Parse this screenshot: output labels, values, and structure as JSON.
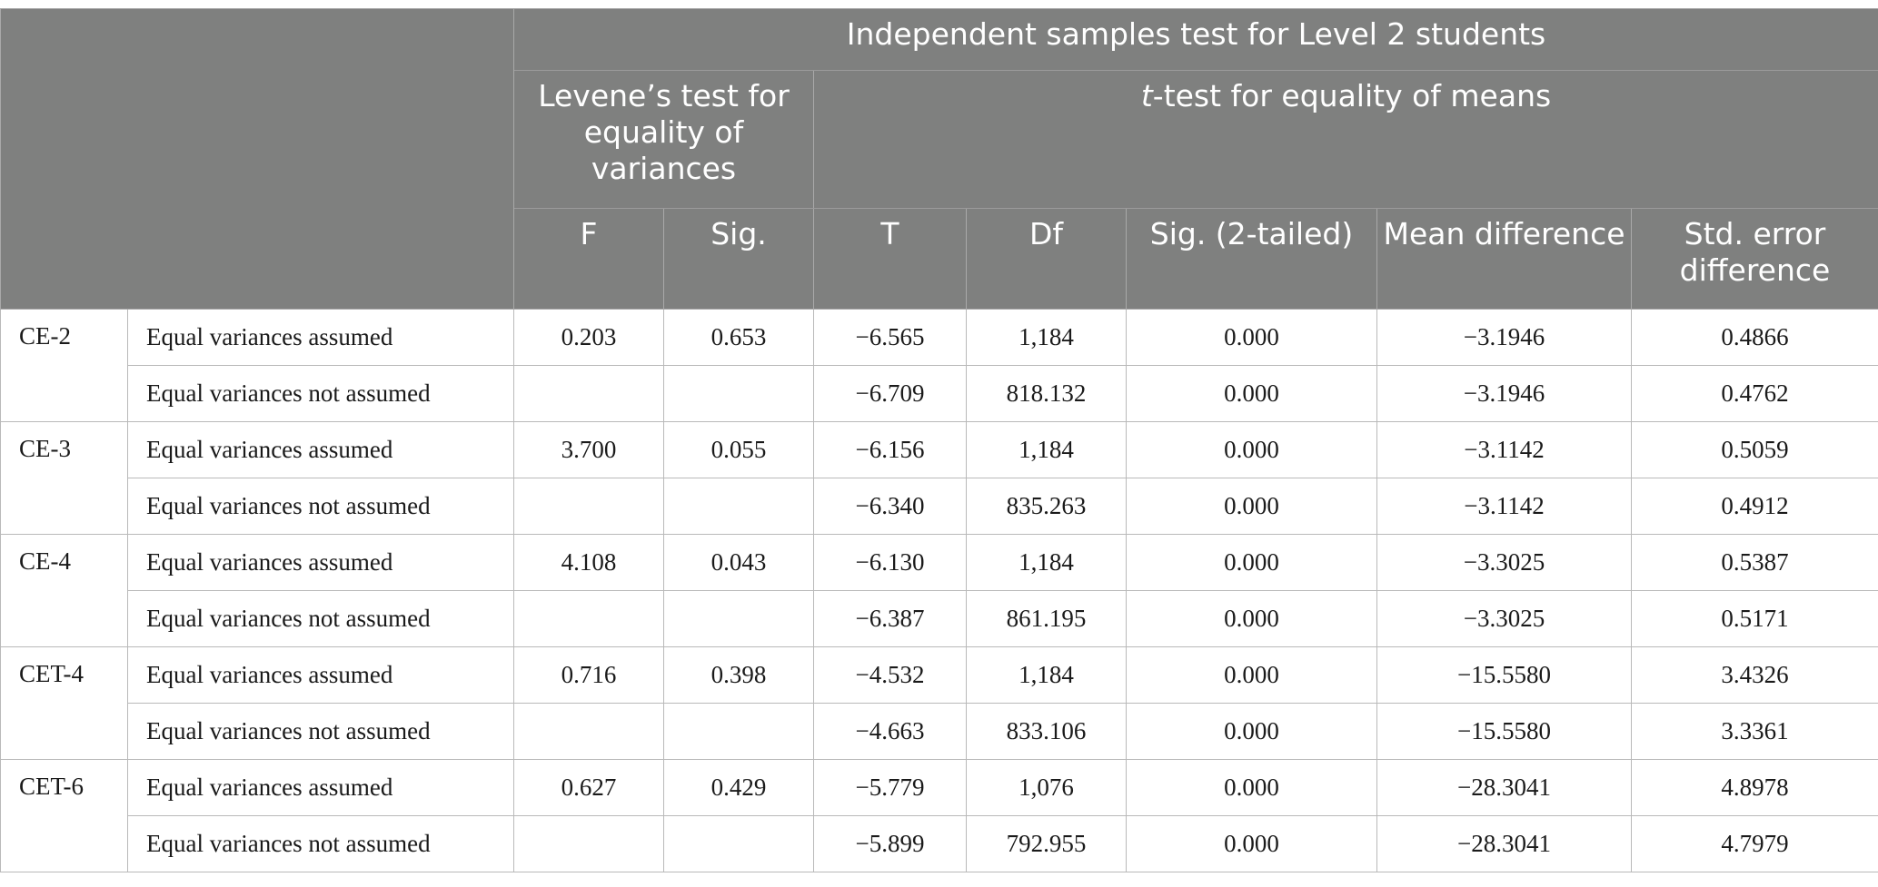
{
  "title": "Independent samples test for Level 2 students",
  "levene_header": "Levene’s test for equality of variances",
  "ttest_header_italic": "t",
  "ttest_header_rest": "-test for equality of means",
  "columns": [
    "F",
    "Sig.",
    "T",
    "Df",
    "Sig. (2-tailed)",
    "Mean difference",
    "Std. error difference"
  ],
  "rows": [
    {
      "test": "CE-2",
      "assumed": {
        "label": "Equal variances assumed",
        "f": "0.203",
        "sig": "0.653",
        "t": "−6.565",
        "df": "1,184",
        "sig2": "0.000",
        "mean": "−3.1946",
        "se": "0.4866"
      },
      "not_assumed": {
        "label": "Equal variances not assumed",
        "t": "−6.709",
        "df": "818.132",
        "sig2": "0.000",
        "mean": "−3.1946",
        "se": "0.4762"
      }
    },
    {
      "test": "CE-3",
      "assumed": {
        "label": "Equal variances assumed",
        "f": "3.700",
        "sig": "0.055",
        "t": "−6.156",
        "df": "1,184",
        "sig2": "0.000",
        "mean": "−3.1142",
        "se": "0.5059"
      },
      "not_assumed": {
        "label": "Equal variances not assumed",
        "t": "−6.340",
        "df": "835.263",
        "sig2": "0.000",
        "mean": "−3.1142",
        "se": "0.4912"
      }
    },
    {
      "test": "CE-4",
      "assumed": {
        "label": "Equal variances assumed",
        "f": "4.108",
        "sig": "0.043",
        "t": "−6.130",
        "df": "1,184",
        "sig2": "0.000",
        "mean": "−3.3025",
        "se": "0.5387"
      },
      "not_assumed": {
        "label": "Equal variances not assumed",
        "t": "−6.387",
        "df": "861.195",
        "sig2": "0.000",
        "mean": "−3.3025",
        "se": "0.5171"
      }
    },
    {
      "test": "CET-4",
      "assumed": {
        "label": "Equal variances assumed",
        "f": "0.716",
        "sig": "0.398",
        "t": "−4.532",
        "df": "1,184",
        "sig2": "0.000",
        "mean": "−15.5580",
        "se": "3.4326"
      },
      "not_assumed": {
        "label": "Equal variances not assumed",
        "t": "−4.663",
        "df": "833.106",
        "sig2": "0.000",
        "mean": "−15.5580",
        "se": "3.3361"
      }
    },
    {
      "test": "CET-6",
      "assumed": {
        "label": "Equal variances assumed",
        "f": "0.627",
        "sig": "0.429",
        "t": "−5.779",
        "df": "1,076",
        "sig2": "0.000",
        "mean": "−28.3041",
        "se": "4.8978"
      },
      "not_assumed": {
        "label": "Equal variances not assumed",
        "t": "−5.899",
        "df": "792.955",
        "sig2": "0.000",
        "mean": "−28.3041",
        "se": "4.7979"
      }
    }
  ],
  "colors": {
    "header_bg": "#7f807f",
    "header_text": "#ffffff",
    "border": "#b9b9b9"
  }
}
